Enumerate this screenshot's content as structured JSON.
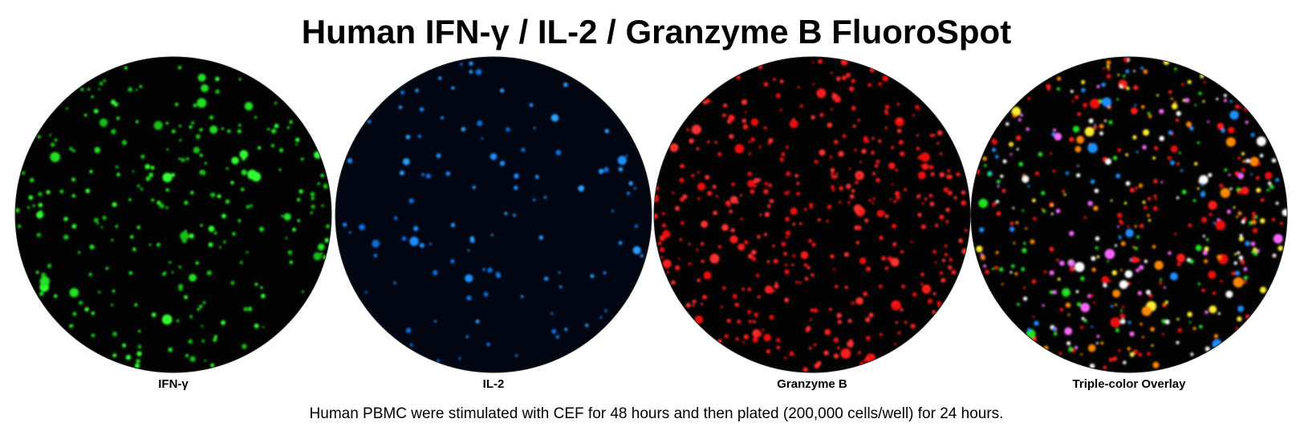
{
  "title": "Human IFN-γ / IL-2 / Granzyme B FluoroSpot",
  "panels": [
    {
      "label": "IFN-γ"
    },
    {
      "label": "IL-2"
    },
    {
      "label": "Granzyme B"
    },
    {
      "label": "Triple-color Overlay"
    }
  ],
  "caption": "Human PBMC were stimulated with CEF for 48 hours and then plated (200,000 cells/well) for 24 hours."
}
